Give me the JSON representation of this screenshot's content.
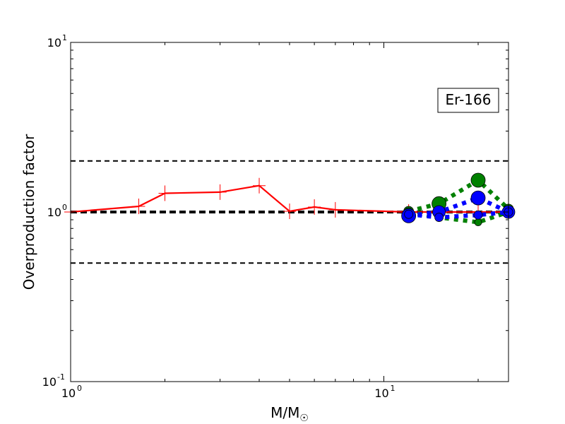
{
  "chart_data": {
    "type": "line",
    "title": "",
    "annotation": "Er-166",
    "xlabel": "M/M",
    "xlabel_subscript": "☉",
    "ylabel": "Overproduction factor",
    "xscale": "log",
    "yscale": "log",
    "xlim": [
      1,
      25
    ],
    "ylim": [
      0.1,
      10
    ],
    "x_ticks": [
      {
        "base": "10",
        "exp": "0",
        "value": 1
      },
      {
        "base": "10",
        "exp": "1",
        "value": 10
      }
    ],
    "y_ticks": [
      {
        "base": "10",
        "exp": "-1",
        "value": 0.1
      },
      {
        "base": "10",
        "exp": "0",
        "value": 1
      },
      {
        "base": "10",
        "exp": "1",
        "value": 10
      }
    ],
    "reference_lines": [
      {
        "y": 2.0,
        "style": "dashed",
        "color": "#000000"
      },
      {
        "y": 1.0,
        "style": "dashed-thick",
        "color": "#000000"
      },
      {
        "y": 0.5,
        "style": "dashed",
        "color": "#000000"
      }
    ],
    "series": [
      {
        "style": "solid",
        "color": "#ff0000",
        "marker": "plus",
        "x": [
          1.0,
          1.65,
          2.0,
          3.0,
          4.0,
          5.0,
          6.0,
          7.0,
          12.0,
          15.0,
          20.0,
          25.0
        ],
        "y": [
          1.0,
          1.08,
          1.29,
          1.31,
          1.43,
          1.01,
          1.07,
          1.03,
          1.0,
          1.0,
          1.0,
          1.0
        ]
      },
      {
        "style": "dotted-thick",
        "color": "#008000",
        "marker": "circle",
        "x": [
          12.0,
          15.0,
          20.0,
          25.0
        ],
        "y": [
          1.01,
          1.12,
          1.54,
          1.04
        ],
        "marker_sizes": [
          7,
          10,
          10,
          7
        ]
      },
      {
        "style": "dotted-thick",
        "color": "#008000",
        "marker": "circle",
        "x": [
          12.0,
          15.0,
          20.0,
          25.0
        ],
        "y": [
          1.0,
          0.93,
          0.87,
          1.0
        ],
        "marker_sizes": [
          6,
          5,
          5,
          6
        ]
      },
      {
        "style": "dotted-thick",
        "color": "#0000ff",
        "marker": "circle",
        "x": [
          12.0,
          15.0,
          20.0,
          25.0
        ],
        "y": [
          0.95,
          1.0,
          1.21,
          1.0
        ],
        "marker_sizes": [
          10,
          9,
          10,
          9
        ]
      },
      {
        "style": "dotted-thick",
        "color": "#0000ff",
        "marker": "circle",
        "x": [
          12.0,
          15.0,
          20.0,
          25.0
        ],
        "y": [
          0.97,
          0.93,
          0.96,
          1.0
        ],
        "marker_sizes": [
          6,
          6,
          6,
          6
        ]
      }
    ]
  }
}
